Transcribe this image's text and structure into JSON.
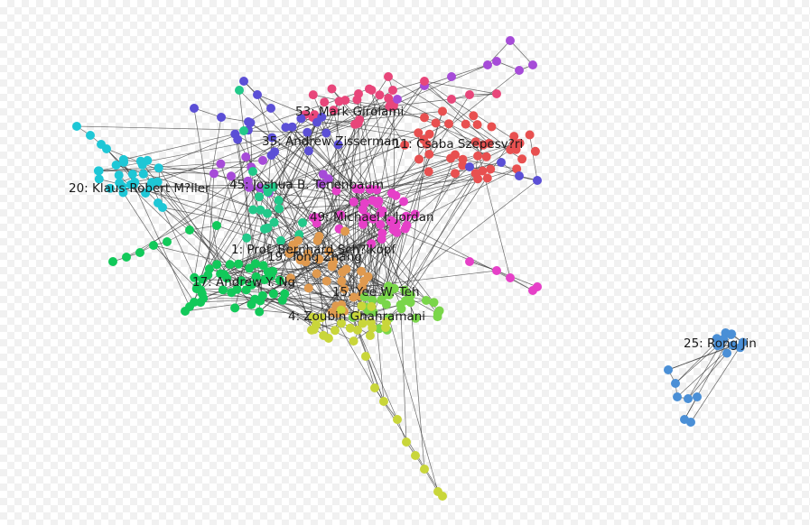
{
  "graph": {
    "communities": [
      {
        "id": "c53",
        "label": "53: Mark Girolami",
        "color": "#e8467a"
      },
      {
        "id": "c35",
        "label": "35: Andrew Zisserman",
        "color": "#5b4fd6"
      },
      {
        "id": "c11",
        "label": "11: Csaba Szepesv?ri",
        "color": "#e85050"
      },
      {
        "id": "c20",
        "label": "20: Klaus-Robert M?ller",
        "color": "#1ec7d6"
      },
      {
        "id": "c45",
        "label": "45: Joshua B. Tenenbaum",
        "color": "#a64bd8"
      },
      {
        "id": "c49",
        "label": "49: Michael I. Jordan",
        "color": "#e640c8"
      },
      {
        "id": "c1",
        "label": "1: Prof. Bernhard Sch?lkopf",
        "color": "#22c98a"
      },
      {
        "id": "c19",
        "label": "19: Tong Zhang",
        "color": "#e09a4f"
      },
      {
        "id": "c17",
        "label": "17: Andrew Y. Ng",
        "color": "#12c95a"
      },
      {
        "id": "c15",
        "label": "15: Yee W. Teh",
        "color": "#7ad64a"
      },
      {
        "id": "c4",
        "label": "4: Zoubin Ghahramani",
        "color": "#c9d63a"
      },
      {
        "id": "c25",
        "label": "25: Rong Jin",
        "color": "#4a8fd6"
      }
    ]
  }
}
